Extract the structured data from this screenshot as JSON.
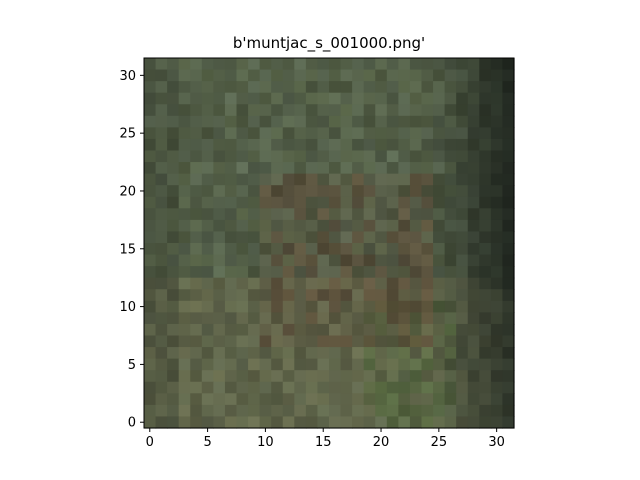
{
  "chart_data": {
    "type": "heatmap",
    "title": "b'muntjac_s_001000.png'",
    "xlim": [
      -0.5,
      31.5
    ],
    "ylim": [
      31.5,
      -0.5
    ],
    "x_ticks": [
      "0",
      "5",
      "10",
      "15",
      "20",
      "25",
      "30"
    ],
    "y_ticks": [
      "0",
      "5",
      "10",
      "15",
      "20",
      "25",
      "30"
    ],
    "grid": false,
    "image_grid": [
      32,
      32
    ],
    "palette": {
      "base": "#4f5a40",
      "dark_right": "#232a22",
      "brown": "#5e4432",
      "olive": "#6b6a4c",
      "green": "#4c6a35",
      "grey_green": "#5d6b5a"
    }
  }
}
